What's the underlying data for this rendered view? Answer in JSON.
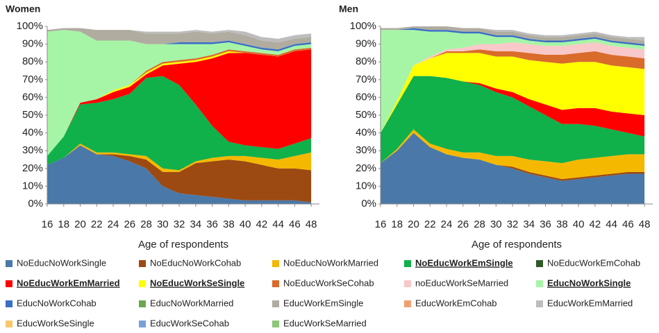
{
  "chart_data": [
    {
      "type": "stacked_area",
      "title": "Women",
      "x_label": "Age of respondents",
      "x": [
        16,
        18,
        20,
        22,
        24,
        26,
        28,
        30,
        32,
        34,
        36,
        38,
        40,
        42,
        44,
        46,
        48
      ],
      "xlim": [
        16,
        49
      ],
      "xticks": [
        16,
        18,
        20,
        22,
        24,
        26,
        28,
        30,
        32,
        34,
        36,
        38,
        40,
        42,
        44,
        46,
        48
      ],
      "ylim": [
        0,
        100
      ],
      "yticks": [
        {
          "value": 0,
          "label": "0%"
        },
        {
          "value": 10,
          "label": "10%"
        },
        {
          "value": 20,
          "label": "20%"
        },
        {
          "value": 30,
          "label": "30%"
        },
        {
          "value": 40,
          "label": "40%"
        },
        {
          "value": 50,
          "label": "50%"
        },
        {
          "value": 60,
          "label": "60%"
        },
        {
          "value": 70,
          "label": "70%"
        },
        {
          "value": 80,
          "label": "80%"
        },
        {
          "value": 90,
          "label": "90%"
        },
        {
          "value": 100,
          "label": "100%"
        }
      ],
      "series": [
        {
          "name": "NoEducNoWorkSingle",
          "color": "#4a78a8",
          "values": [
            22,
            26,
            33,
            28,
            27,
            24,
            20,
            10,
            6,
            5,
            4,
            3,
            2,
            2,
            2,
            2,
            1
          ]
        },
        {
          "name": "NoEducNoWorkCohab",
          "color": "#9c4a12",
          "values": [
            0,
            0,
            0,
            0,
            1,
            3,
            5,
            8,
            12,
            18,
            20,
            22,
            22,
            20,
            18,
            18,
            18
          ]
        },
        {
          "name": "NoEducNoWorkMarried",
          "color": "#f5b800",
          "values": [
            0,
            0,
            1,
            1,
            1,
            1,
            2,
            2,
            1,
            1,
            2,
            2,
            3,
            4,
            5,
            7,
            10
          ]
        },
        {
          "name": "NoEducWorkEmSingle",
          "color": "#10b04a",
          "emphasis": true,
          "values": [
            5,
            12,
            22,
            28,
            30,
            34,
            44,
            52,
            48,
            32,
            18,
            8,
            6,
            6,
            6,
            7,
            8
          ]
        },
        {
          "name": "NoEducWorkEmCohab",
          "color": "#2d5a27",
          "values": [
            0,
            0,
            0,
            0,
            0,
            0,
            0,
            0,
            0,
            0,
            0,
            0,
            0,
            0,
            0,
            0,
            0
          ]
        },
        {
          "name": "NoEducWorkEmMarried",
          "color": "#ff0000",
          "emphasis": true,
          "values": [
            0,
            0,
            1,
            2,
            4,
            4,
            2,
            6,
            12,
            24,
            38,
            50,
            52,
            52,
            52,
            52,
            50
          ]
        },
        {
          "name": "NoEducWorkSeSingle",
          "color": "#ffff00",
          "emphasis": true,
          "values": [
            0,
            0,
            0,
            0,
            1,
            1,
            1,
            1,
            1,
            1,
            1,
            1,
            0,
            0,
            0,
            0,
            0
          ]
        },
        {
          "name": "NoEducWorkSeCohab",
          "color": "#d96b2b",
          "values": [
            0,
            0,
            0,
            0,
            0,
            0,
            1,
            1,
            1,
            1,
            1,
            1,
            1,
            1,
            1,
            1,
            1
          ]
        },
        {
          "name": "noEducWorkSeMarried",
          "color": "#f9c8c8",
          "values": [
            0,
            0,
            0,
            0,
            0,
            0,
            0,
            0,
            0,
            0,
            0,
            0,
            0,
            0,
            0,
            0,
            0
          ]
        },
        {
          "name": "EducNoWorkSingle",
          "color": "#a6f5a6",
          "emphasis": true,
          "values": [
            70,
            60,
            40,
            33,
            28,
            25,
            15,
            10,
            9,
            8,
            6,
            4,
            3,
            2,
            2,
            2,
            2
          ]
        },
        {
          "name": "EducNoWorkCohab",
          "color": "#3a6fc4",
          "values": [
            0,
            0,
            0,
            0,
            0,
            0,
            0,
            0,
            1,
            1,
            1,
            1,
            1,
            1,
            1,
            1,
            1
          ]
        },
        {
          "name": "EducNoWorkMarried",
          "color": "#6aa84f",
          "values": [
            0,
            0,
            0,
            0,
            0,
            0,
            0,
            0,
            0,
            0,
            0,
            0,
            0,
            0,
            0,
            0,
            0
          ]
        },
        {
          "name": "EducWorkEmSingle",
          "color": "#b0aca0",
          "values": [
            1,
            1,
            2,
            6,
            6,
            6,
            6,
            6,
            5,
            6,
            5,
            5,
            5,
            4,
            4,
            3,
            3
          ]
        },
        {
          "name": "EducWorkEmCohab",
          "color": "#f0a070",
          "values": [
            0,
            0,
            0,
            0,
            0,
            0,
            0,
            0,
            0,
            0,
            0,
            0,
            0,
            0,
            0,
            0,
            0
          ]
        },
        {
          "name": "EducWorkEmMarried",
          "color": "#bdbdbd",
          "values": [
            0,
            0,
            0,
            0,
            0,
            0,
            1,
            1,
            1,
            1,
            1,
            1,
            2,
            2,
            2,
            2,
            2
          ]
        },
        {
          "name": "EducWorkSeSingle",
          "color": "#f9c86a",
          "values": [
            0,
            0,
            0,
            0,
            0,
            0,
            0,
            0,
            0,
            0,
            0,
            0,
            0,
            0,
            0,
            0,
            0
          ]
        },
        {
          "name": "EducWorkSeCohab",
          "color": "#7a9fd8",
          "values": [
            0,
            0,
            0,
            0,
            0,
            0,
            0,
            0,
            0,
            0,
            0,
            0,
            0,
            0,
            0,
            0,
            0
          ]
        },
        {
          "name": "EducWorkSeMarried",
          "color": "#8cc77a",
          "values": [
            0,
            0,
            0,
            0,
            0,
            0,
            0,
            0,
            0,
            0,
            0,
            0,
            0,
            0,
            0,
            0,
            0
          ]
        }
      ]
    },
    {
      "type": "stacked_area",
      "title": "Men",
      "x_label": "Age of respondents",
      "x": [
        16,
        18,
        20,
        22,
        24,
        26,
        28,
        30,
        32,
        34,
        36,
        38,
        40,
        42,
        44,
        46,
        48
      ],
      "xlim": [
        16,
        49
      ],
      "xticks": [
        16,
        18,
        20,
        22,
        24,
        26,
        28,
        30,
        32,
        34,
        36,
        38,
        40,
        42,
        44,
        46,
        48
      ],
      "ylim": [
        0,
        100
      ],
      "yticks": [
        {
          "value": 0,
          "label": "0%"
        },
        {
          "value": 10,
          "label": "10%"
        },
        {
          "value": 20,
          "label": "20%"
        },
        {
          "value": 30,
          "label": "30%"
        },
        {
          "value": 40,
          "label": "40%"
        },
        {
          "value": 50,
          "label": "50%"
        },
        {
          "value": 60,
          "label": "60%"
        },
        {
          "value": 70,
          "label": "70%"
        },
        {
          "value": 80,
          "label": "80%"
        },
        {
          "value": 90,
          "label": "90%"
        },
        {
          "value": 100,
          "label": "100%"
        }
      ],
      "series": [
        {
          "values": [
            23,
            30,
            40,
            32,
            28,
            26,
            25,
            22,
            20,
            17,
            15,
            13,
            14,
            15,
            16,
            17,
            17
          ]
        },
        {
          "values": [
            0,
            0,
            0,
            0,
            0,
            0,
            0,
            0,
            1,
            1,
            1,
            1,
            1,
            1,
            1,
            1,
            1
          ]
        },
        {
          "values": [
            0,
            1,
            2,
            2,
            3,
            3,
            4,
            5,
            6,
            7,
            8,
            9,
            10,
            10,
            10,
            10,
            10
          ]
        },
        {
          "values": [
            17,
            25,
            30,
            38,
            40,
            40,
            38,
            36,
            33,
            30,
            26,
            22,
            20,
            18,
            15,
            12,
            10
          ]
        },
        {
          "values": [
            0,
            0,
            0,
            0,
            0,
            0,
            0,
            0,
            0,
            0,
            0,
            0,
            0,
            0,
            0,
            0,
            0
          ]
        },
        {
          "values": [
            0,
            0,
            0,
            0,
            0,
            0,
            1,
            2,
            3,
            4,
            6,
            8,
            9,
            10,
            10,
            11,
            12
          ]
        },
        {
          "values": [
            0,
            2,
            6,
            10,
            14,
            16,
            17,
            18,
            20,
            22,
            24,
            26,
            26,
            26,
            26,
            26,
            26
          ]
        },
        {
          "values": [
            0,
            0,
            0,
            0,
            1,
            1,
            2,
            3,
            3,
            4,
            4,
            5,
            5,
            6,
            6,
            6,
            6
          ]
        },
        {
          "values": [
            0,
            0,
            0,
            1,
            1,
            2,
            3,
            4,
            5,
            5,
            5,
            5,
            5,
            5,
            5,
            5,
            5
          ]
        },
        {
          "values": [
            58,
            40,
            20,
            14,
            10,
            8,
            6,
            4,
            3,
            2,
            2,
            2,
            2,
            2,
            2,
            2,
            2
          ]
        },
        {
          "values": [
            0,
            0,
            1,
            1,
            1,
            1,
            1,
            1,
            1,
            1,
            1,
            1,
            1,
            1,
            1,
            1,
            1
          ]
        },
        {
          "values": [
            0,
            0,
            0,
            0,
            0,
            0,
            0,
            0,
            0,
            0,
            0,
            0,
            0,
            0,
            0,
            0,
            0
          ]
        },
        {
          "values": [
            1,
            1,
            1,
            2,
            2,
            2,
            2,
            2,
            2,
            2,
            2,
            2,
            2,
            2,
            2,
            2,
            2
          ]
        },
        {
          "values": [
            0,
            0,
            0,
            0,
            0,
            0,
            0,
            0,
            0,
            0,
            0,
            0,
            0,
            0,
            0,
            0,
            0
          ]
        },
        {
          "values": [
            0,
            0,
            0,
            0,
            0,
            0,
            0,
            1,
            1,
            1,
            1,
            1,
            1,
            1,
            1,
            1,
            2
          ]
        },
        {
          "values": [
            0,
            0,
            0,
            0,
            0,
            0,
            0,
            0,
            0,
            0,
            0,
            0,
            0,
            0,
            0,
            0,
            0
          ]
        },
        {
          "values": [
            0,
            0,
            0,
            0,
            0,
            0,
            0,
            0,
            0,
            0,
            0,
            0,
            0,
            0,
            0,
            0,
            0
          ]
        },
        {
          "values": [
            0,
            0,
            0,
            0,
            0,
            0,
            0,
            0,
            0,
            0,
            0,
            0,
            0,
            0,
            0,
            0,
            0
          ]
        }
      ]
    }
  ]
}
